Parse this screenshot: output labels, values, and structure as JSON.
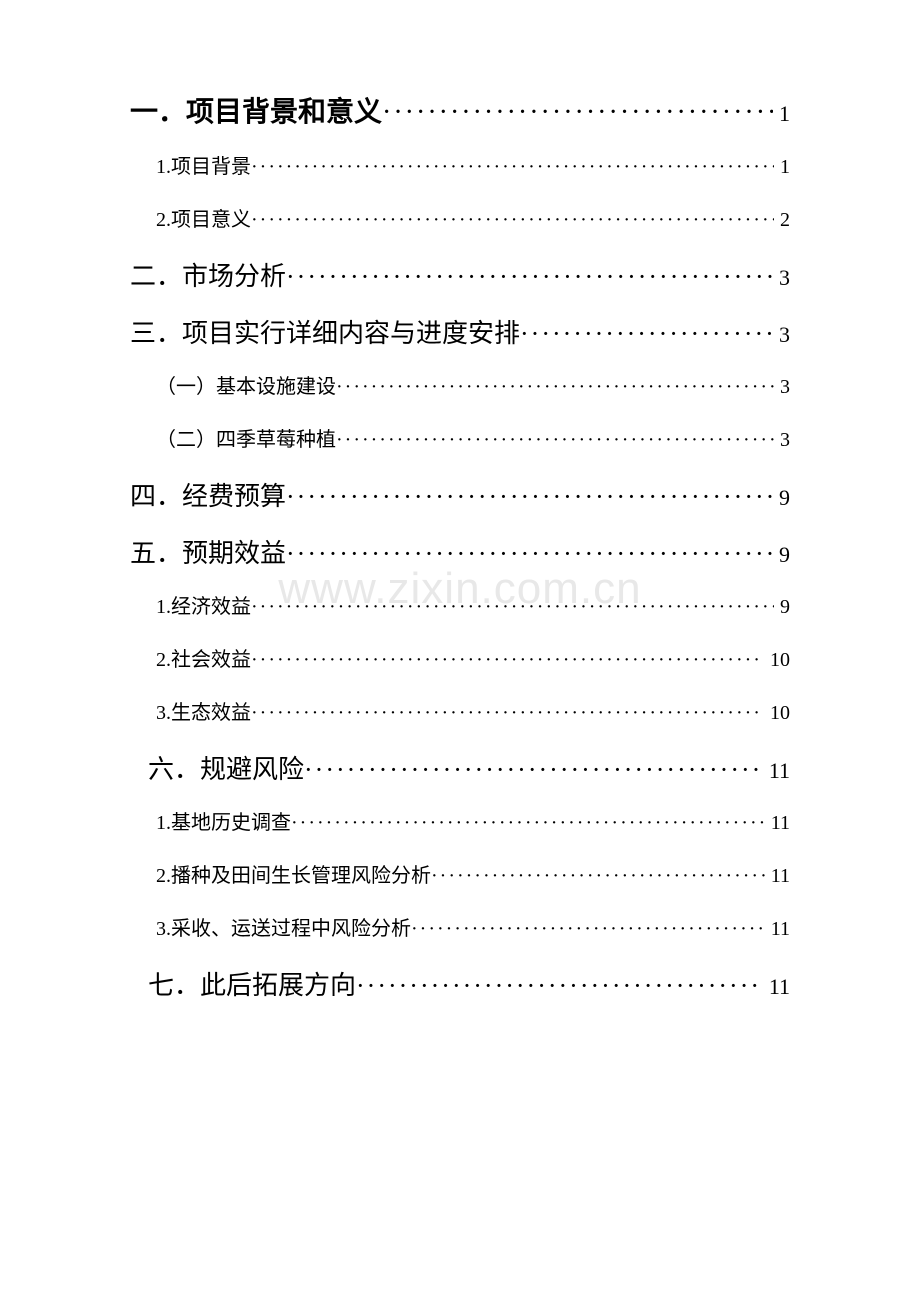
{
  "watermark": "www.zixin.com.cn",
  "leader_char": "·",
  "toc": [
    {
      "level": 1,
      "label": "一．项目背景和意义",
      "page": "1",
      "bold": true
    },
    {
      "level": 2,
      "label": "1.项目背景",
      "page": "1"
    },
    {
      "level": 2,
      "label": "2.项目意义",
      "page": "2"
    },
    {
      "level": 1,
      "label": "二．市场分析",
      "page": "3",
      "bold": false
    },
    {
      "level": 1,
      "label": "三．项目实行详细内容与进度安排",
      "page": "3",
      "bold": false
    },
    {
      "level": 2,
      "label": "（一）基本设施建设",
      "page": "3"
    },
    {
      "level": 2,
      "label": "（二）四季草莓种植",
      "page": "3"
    },
    {
      "level": 1,
      "label": "四．经费预算",
      "page": "9",
      "bold": false
    },
    {
      "level": 1,
      "label": "五．预期效益",
      "page": "9",
      "bold": false
    },
    {
      "level": 2,
      "label": "1.经济效益",
      "page": "9"
    },
    {
      "level": 2,
      "label": "2.社会效益",
      "page": "10"
    },
    {
      "level": 2,
      "label": "3.生态效益",
      "page": "10"
    },
    {
      "level": 1,
      "label": "六．规避风险",
      "page": "11",
      "bold": false,
      "indent": true
    },
    {
      "level": 2,
      "label": "1.基地历史调查",
      "page": "11"
    },
    {
      "level": 2,
      "label": "2.播种及田间生长管理风险分析",
      "page": "11"
    },
    {
      "level": 2,
      "label": "3.采收、运送过程中风险分析",
      "page": "11"
    },
    {
      "level": 1,
      "label": "七．此后拓展方向",
      "page": "11",
      "bold": false,
      "indent": true
    }
  ]
}
